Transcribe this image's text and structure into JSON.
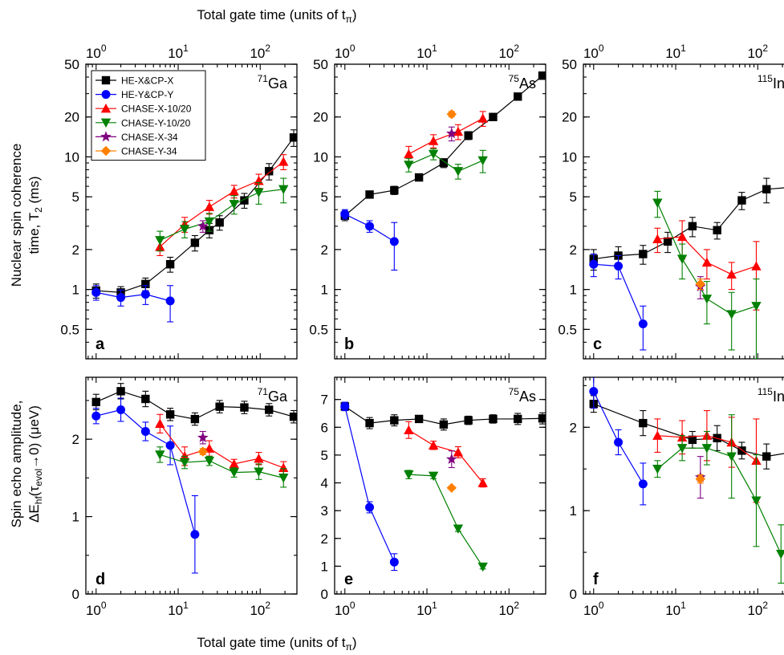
{
  "figure": {
    "top_xlabel": "Total gate time (units of t",
    "bottom_xlabel": "Total gate time (units of t",
    "xlabel_sub": "π",
    "ylabel_top_line1": "Nuclear spin coherence",
    "ylabel_top_line2": "time, T",
    "ylabel_top_sub": "2",
    "ylabel_top_unit": " (ms)",
    "ylabel_bottom_line1": "Spin echo amplitude,",
    "ylabel_bottom_line2a": "ΔE",
    "ylabel_bottom_line2_sub1": "hf",
    "ylabel_bottom_line2b": "(τ",
    "ylabel_bottom_line2_sub2": "evol",
    "ylabel_bottom_line2c": "→0) (μeV)"
  },
  "legend": [
    {
      "name": "HE-X&CP-X",
      "color": "#000000",
      "marker": "square"
    },
    {
      "name": "HE-Y&CP-Y",
      "color": "#0000ff",
      "marker": "circle"
    },
    {
      "name": "CHASE-X-10/20",
      "color": "#ff0000",
      "marker": "triangle-up"
    },
    {
      "name": "CHASE-Y-10/20",
      "color": "#008000",
      "marker": "triangle-down"
    },
    {
      "name": "CHASE-X-34",
      "color": "#800080",
      "marker": "star"
    },
    {
      "name": "CHASE-Y-34",
      "color": "#ff8000",
      "marker": "diamond"
    }
  ],
  "chart_data": [
    {
      "panel": "a",
      "type": "scatter",
      "iso_mass": "71",
      "iso_elem": "Ga",
      "x_scale": "log",
      "y_scale": "log",
      "xlim": [
        0.75,
        280
      ],
      "ylim": [
        0.3,
        50
      ],
      "yticks": [
        0.5,
        1,
        2,
        5,
        10,
        20,
        50
      ],
      "ytick_labels": [
        "0.5",
        "1",
        "2",
        "5",
        "10",
        "20",
        "50"
      ],
      "series": [
        {
          "name": "HE-X&CP-X",
          "color": "#000000",
          "marker": "square",
          "x": [
            1,
            2,
            4,
            8,
            16,
            24,
            32,
            64,
            128,
            256
          ],
          "y": [
            0.98,
            0.95,
            1.1,
            1.55,
            2.25,
            2.8,
            3.2,
            4.7,
            7.8,
            14.0
          ],
          "err": [
            0.12,
            0.1,
            0.12,
            0.2,
            0.3,
            0.35,
            0.4,
            0.6,
            1.1,
            2.0
          ]
        },
        {
          "name": "HE-Y&CP-Y",
          "color": "#0000ff",
          "marker": "circle",
          "x": [
            1,
            2,
            4,
            8
          ],
          "y": [
            0.95,
            0.87,
            0.92,
            0.82
          ],
          "err": [
            0.12,
            0.12,
            0.15,
            0.25
          ]
        },
        {
          "name": "CHASE-X-10/20",
          "color": "#ff0000",
          "marker": "triangle-up",
          "x": [
            6,
            12,
            24,
            48,
            96,
            192
          ],
          "y": [
            2.1,
            3.1,
            4.2,
            5.5,
            6.6,
            9.2
          ],
          "err": [
            0.3,
            0.4,
            0.5,
            0.6,
            0.8,
            1.2
          ]
        },
        {
          "name": "CHASE-Y-10/20",
          "color": "#008000",
          "marker": "triangle-down",
          "x": [
            6,
            12,
            24,
            48,
            96,
            192
          ],
          "y": [
            2.35,
            2.85,
            3.25,
            4.4,
            5.4,
            5.7
          ],
          "err": [
            0.4,
            0.4,
            0.5,
            0.7,
            1.0,
            1.2
          ]
        },
        {
          "name": "CHASE-X-34",
          "color": "#800080",
          "marker": "star",
          "x": [
            20
          ],
          "y": [
            3.0
          ],
          "err": [
            0.3
          ]
        }
      ]
    },
    {
      "panel": "b",
      "type": "scatter",
      "iso_mass": "75",
      "iso_elem": "As",
      "x_scale": "log",
      "y_scale": "log",
      "xlim": [
        0.75,
        280
      ],
      "ylim": [
        0.3,
        50
      ],
      "yticks": [
        0.5,
        1,
        2,
        5,
        10,
        20,
        50
      ],
      "ytick_labels": [
        "0.5",
        "1",
        "2",
        "5",
        "10",
        "20",
        "50"
      ],
      "series": [
        {
          "name": "HE-X&CP-X",
          "color": "#000000",
          "marker": "square",
          "x": [
            1,
            2,
            4,
            8,
            16,
            32,
            64,
            128,
            256
          ],
          "y": [
            3.6,
            5.2,
            5.6,
            7.0,
            9.0,
            14.5,
            20.0,
            28.5,
            41.0
          ],
          "err": [
            0.3,
            0.3,
            0.4,
            0.4,
            0.7,
            1.0,
            1.2,
            1.5,
            2.5
          ]
        },
        {
          "name": "HE-Y&CP-Y",
          "color": "#0000ff",
          "marker": "circle",
          "x": [
            1,
            2,
            4
          ],
          "y": [
            3.7,
            3.0,
            2.3
          ],
          "err": [
            0.3,
            0.3,
            0.9
          ]
        },
        {
          "name": "CHASE-X-10/20",
          "color": "#ff0000",
          "marker": "triangle-up",
          "x": [
            6,
            12,
            24,
            48
          ],
          "y": [
            10.5,
            13.2,
            15.5,
            19.5
          ],
          "err": [
            1.5,
            1.5,
            2.0,
            2.5
          ]
        },
        {
          "name": "CHASE-Y-10/20",
          "color": "#008000",
          "marker": "triangle-down",
          "x": [
            6,
            12,
            24,
            48
          ],
          "y": [
            8.7,
            10.5,
            7.8,
            9.4
          ],
          "err": [
            1.0,
            1.0,
            1.0,
            1.8
          ]
        },
        {
          "name": "CHASE-X-34",
          "color": "#800080",
          "marker": "star",
          "x": [
            20
          ],
          "y": [
            15.0
          ],
          "err": [
            1.8
          ]
        },
        {
          "name": "CHASE-Y-34",
          "color": "#ff8000",
          "marker": "diamond",
          "x": [
            20
          ],
          "y": [
            21.0
          ],
          "err": [
            1.0
          ]
        }
      ]
    },
    {
      "panel": "c",
      "type": "scatter",
      "iso_mass": "115",
      "iso_elem": "In",
      "x_scale": "log",
      "y_scale": "log",
      "xlim": [
        0.75,
        280
      ],
      "ylim": [
        0.3,
        50
      ],
      "yticks": [
        0.5,
        1,
        2,
        5,
        10,
        20,
        50
      ],
      "ytick_labels": [
        "0.5",
        "1",
        "2",
        "5",
        "10",
        "20",
        "50"
      ],
      "series": [
        {
          "name": "HE-X&CP-X",
          "color": "#000000",
          "marker": "square",
          "x": [
            1,
            2,
            4,
            8,
            16,
            32,
            64,
            128,
            256
          ],
          "y": [
            1.7,
            1.8,
            1.85,
            2.3,
            3.0,
            2.8,
            4.7,
            5.7,
            5.9
          ],
          "err": [
            0.3,
            0.3,
            0.3,
            0.4,
            0.5,
            0.4,
            0.7,
            1.2,
            1.5
          ]
        },
        {
          "name": "HE-Y&CP-Y",
          "color": "#0000ff",
          "marker": "circle",
          "x": [
            1,
            2,
            4
          ],
          "y": [
            1.55,
            1.5,
            0.55
          ],
          "err": [
            0.3,
            0.3,
            0.2
          ]
        },
        {
          "name": "CHASE-X-10/20",
          "color": "#ff0000",
          "marker": "triangle-up",
          "x": [
            6,
            12,
            24,
            48,
            96
          ],
          "y": [
            2.4,
            2.5,
            1.6,
            1.3,
            1.5
          ],
          "err": [
            0.5,
            0.8,
            0.4,
            0.3,
            0.8
          ]
        },
        {
          "name": "CHASE-Y-10/20",
          "color": "#008000",
          "marker": "triangle-down",
          "x": [
            6,
            12,
            24,
            48,
            96
          ],
          "y": [
            4.5,
            1.7,
            0.85,
            0.65,
            0.75
          ],
          "err": [
            1.0,
            0.5,
            0.3,
            0.3,
            0.45
          ]
        },
        {
          "name": "CHASE-X-34",
          "color": "#800080",
          "marker": "star",
          "x": [
            20
          ],
          "y": [
            1.05
          ],
          "err": [
            0.2
          ]
        },
        {
          "name": "CHASE-Y-34",
          "color": "#ff8000",
          "marker": "diamond",
          "x": [
            20
          ],
          "y": [
            1.1
          ],
          "err": [
            0.1
          ]
        }
      ]
    },
    {
      "panel": "d",
      "type": "scatter",
      "iso_mass": "71",
      "iso_elem": "Ga",
      "x_scale": "log",
      "y_scale": "linear",
      "xlim": [
        0.75,
        280
      ],
      "ylim": [
        0,
        2.8
      ],
      "yticks": [
        0,
        1,
        2
      ],
      "ytick_labels": [
        "0",
        "1",
        "2"
      ],
      "series": [
        {
          "name": "HE-X&CP-X",
          "color": "#000000",
          "marker": "square",
          "x": [
            1,
            2,
            4,
            8,
            16,
            32,
            64,
            128,
            256
          ],
          "y": [
            2.48,
            2.62,
            2.52,
            2.32,
            2.26,
            2.42,
            2.41,
            2.38,
            2.29
          ],
          "err": [
            0.1,
            0.1,
            0.1,
            0.08,
            0.08,
            0.08,
            0.08,
            0.08,
            0.08
          ]
        },
        {
          "name": "HE-Y&CP-Y",
          "color": "#0000ff",
          "marker": "circle",
          "x": [
            1,
            2,
            4,
            8,
            16
          ],
          "y": [
            2.3,
            2.38,
            2.1,
            1.92,
            0.77
          ],
          "err": [
            0.1,
            0.15,
            0.12,
            0.25,
            0.5
          ]
        },
        {
          "name": "CHASE-X-10/20",
          "color": "#ff0000",
          "marker": "triangle-up",
          "x": [
            6,
            12,
            24,
            48,
            96,
            192
          ],
          "y": [
            2.2,
            1.78,
            1.88,
            1.68,
            1.75,
            1.63
          ],
          "err": [
            0.12,
            0.12,
            0.1,
            0.06,
            0.08,
            0.08
          ]
        },
        {
          "name": "CHASE-Y-10/20",
          "color": "#008000",
          "marker": "triangle-down",
          "x": [
            6,
            12,
            24,
            48,
            96,
            192
          ],
          "y": [
            1.8,
            1.7,
            1.72,
            1.57,
            1.58,
            1.5
          ],
          "err": [
            0.1,
            0.08,
            0.06,
            0.06,
            0.1,
            0.12
          ]
        },
        {
          "name": "CHASE-X-34",
          "color": "#800080",
          "marker": "star",
          "x": [
            20
          ],
          "y": [
            2.02
          ],
          "err": [
            0.08
          ]
        },
        {
          "name": "CHASE-Y-34",
          "color": "#ff8000",
          "marker": "diamond",
          "x": [
            20
          ],
          "y": [
            1.84
          ],
          "err": [
            0.04
          ]
        }
      ]
    },
    {
      "panel": "e",
      "type": "scatter",
      "iso_mass": "75",
      "iso_elem": "As",
      "x_scale": "log",
      "y_scale": "linear",
      "xlim": [
        0.75,
        280
      ],
      "ylim": [
        0,
        7.8
      ],
      "yticks": [
        0,
        1,
        2,
        3,
        4,
        5,
        6,
        7
      ],
      "ytick_labels": [
        "0",
        "1",
        "2",
        "3",
        "4",
        "5",
        "6",
        "7"
      ],
      "series": [
        {
          "name": "HE-X&CP-X",
          "color": "#000000",
          "marker": "square",
          "x": [
            1,
            2,
            4,
            8,
            16,
            32,
            64,
            128,
            256
          ],
          "y": [
            6.75,
            6.15,
            6.25,
            6.3,
            6.1,
            6.25,
            6.3,
            6.3,
            6.32
          ],
          "err": [
            0.15,
            0.2,
            0.2,
            0.1,
            0.2,
            0.15,
            0.15,
            0.2,
            0.2
          ]
        },
        {
          "name": "HE-Y&CP-Y",
          "color": "#0000ff",
          "marker": "circle",
          "x": [
            1,
            2,
            4
          ],
          "y": [
            6.75,
            3.12,
            1.15
          ],
          "err": [
            0.15,
            0.2,
            0.3
          ]
        },
        {
          "name": "CHASE-X-10/20",
          "color": "#ff0000",
          "marker": "triangle-up",
          "x": [
            6,
            12,
            24,
            48
          ],
          "y": [
            5.9,
            5.35,
            5.1,
            4.0
          ],
          "err": [
            0.3,
            0.15,
            0.2,
            0.15
          ]
        },
        {
          "name": "CHASE-Y-10/20",
          "color": "#008000",
          "marker": "triangle-down",
          "x": [
            6,
            12,
            24,
            48
          ],
          "y": [
            4.3,
            4.25,
            2.35,
            0.98
          ],
          "err": [
            0.15,
            0.1,
            0.1,
            0.08
          ]
        },
        {
          "name": "CHASE-X-34",
          "color": "#800080",
          "marker": "star",
          "x": [
            20
          ],
          "y": [
            4.85
          ],
          "err": [
            0.3
          ]
        },
        {
          "name": "CHASE-Y-34",
          "color": "#ff8000",
          "marker": "diamond",
          "x": [
            20
          ],
          "y": [
            3.82
          ],
          "err": [
            0.05
          ]
        }
      ]
    },
    {
      "panel": "f",
      "type": "scatter",
      "iso_mass": "115",
      "iso_elem": "In",
      "x_scale": "log",
      "y_scale": "linear",
      "xlim": [
        0.75,
        280
      ],
      "ylim": [
        0,
        2.6
      ],
      "yticks": [
        0,
        1,
        2
      ],
      "ytick_labels": [
        "0",
        "1",
        "2"
      ],
      "series": [
        {
          "name": "HE-X&CP-X",
          "color": "#000000",
          "marker": "square",
          "x": [
            1,
            4,
            16,
            32,
            64,
            128,
            256
          ],
          "y": [
            2.28,
            2.05,
            1.85,
            1.87,
            1.72,
            1.65,
            1.7
          ],
          "err": [
            0.1,
            0.15,
            0.1,
            0.15,
            0.1,
            0.15,
            0.15
          ]
        },
        {
          "name": "HE-Y&CP-Y",
          "color": "#0000ff",
          "marker": "circle",
          "x": [
            1,
            2,
            4
          ],
          "y": [
            2.43,
            1.82,
            1.32
          ],
          "err": [
            0.2,
            0.15,
            0.25
          ]
        },
        {
          "name": "CHASE-X-10/20",
          "color": "#ff0000",
          "marker": "triangle-up",
          "x": [
            6,
            12,
            24,
            48,
            96
          ],
          "y": [
            1.9,
            1.88,
            1.9,
            1.82,
            1.6
          ],
          "err": [
            0.2,
            0.2,
            0.3,
            0.3,
            0.5
          ]
        },
        {
          "name": "CHASE-Y-10/20",
          "color": "#008000",
          "marker": "triangle-down",
          "x": [
            6,
            12,
            24,
            48,
            96,
            192
          ],
          "y": [
            1.5,
            1.75,
            1.75,
            1.65,
            1.12,
            0.48
          ],
          "err": [
            0.1,
            0.15,
            0.2,
            0.5,
            0.55,
            0.35
          ]
        },
        {
          "name": "CHASE-X-34",
          "color": "#800080",
          "marker": "star",
          "x": [
            20
          ],
          "y": [
            1.4
          ],
          "err": [
            0.25
          ]
        },
        {
          "name": "CHASE-Y-34",
          "color": "#ff8000",
          "marker": "diamond",
          "x": [
            20
          ],
          "y": [
            1.38
          ],
          "err": [
            0.05
          ]
        }
      ]
    }
  ]
}
